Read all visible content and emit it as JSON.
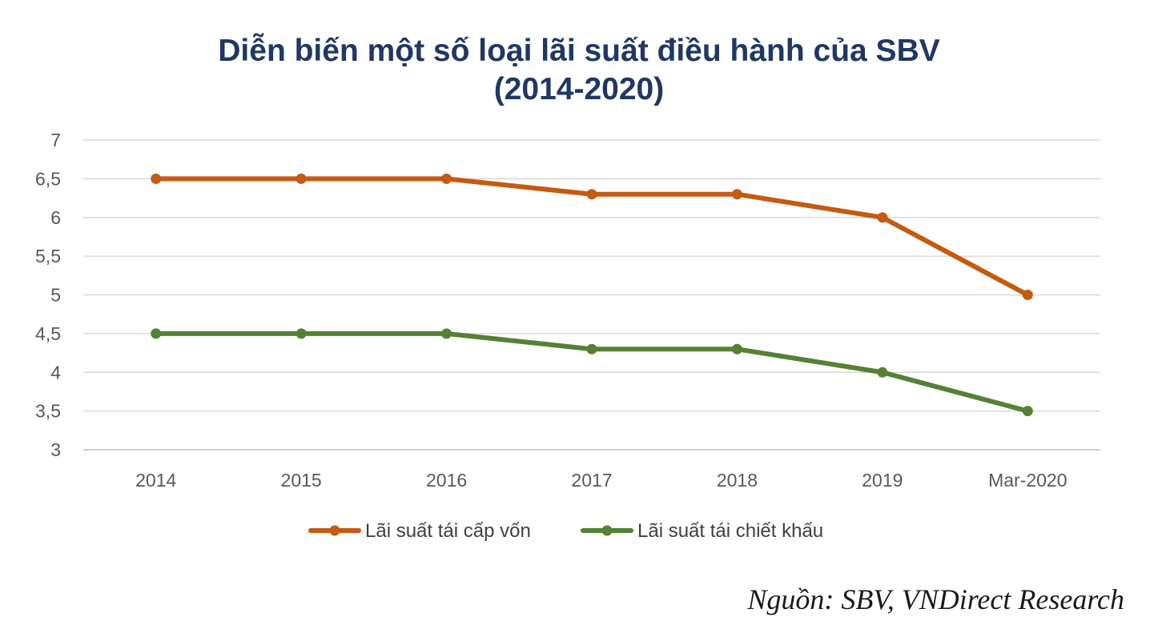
{
  "chart_data": {
    "type": "line",
    "title": "Diễn biến một số loại lãi suất điều hành của SBV",
    "subtitle": "(2014-2020)",
    "categories": [
      "2014",
      "2015",
      "2016",
      "2017",
      "2018",
      "2019",
      "Mar-2020"
    ],
    "series": [
      {
        "name": "Lãi suất tái cấp vốn",
        "color": "#c55a11",
        "values": [
          6.5,
          6.5,
          6.5,
          6.3,
          6.3,
          6.0,
          5.0
        ]
      },
      {
        "name": "Lãi suất tái chiết khấu",
        "color": "#548235",
        "values": [
          4.5,
          4.5,
          4.5,
          4.3,
          4.3,
          4.0,
          3.5
        ]
      }
    ],
    "ylim": [
      3,
      7
    ],
    "yticks": [
      3,
      3.5,
      4,
      4.5,
      5,
      5.5,
      6,
      6.5,
      7
    ],
    "ytick_labels": [
      "3",
      "3,5",
      "4",
      "4,5",
      "5",
      "5,5",
      "6",
      "6,5",
      "7"
    ],
    "grid": true,
    "legend_position": "bottom"
  },
  "source": "Nguồn: SBV, VNDirect Research"
}
